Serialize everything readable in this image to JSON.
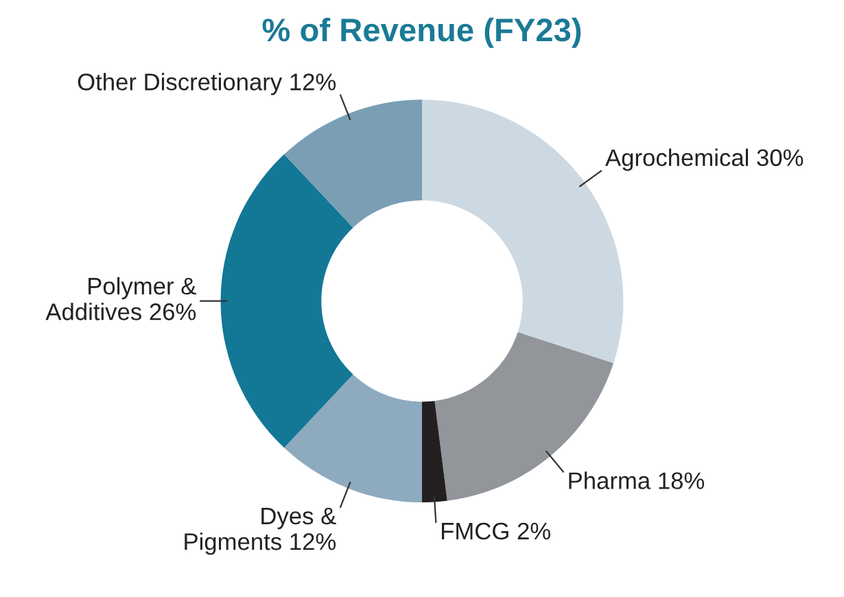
{
  "chart_data": {
    "type": "donut",
    "title": "% of Revenue (FY23)",
    "categories": [
      "Agrochemical",
      "Pharma",
      "FMCG",
      "Dyes &\nPigments",
      "Polymer &\nAdditives",
      "Other Discretionary"
    ],
    "values": [
      30,
      18,
      2,
      12,
      26,
      12
    ],
    "value_labels": [
      "30%",
      "18%",
      "2%",
      "12%",
      "26%",
      "12%"
    ],
    "colors": [
      "#cdd9e2",
      "#929599",
      "#231f20",
      "#8eaabf",
      "#137796",
      "#7a9fb5"
    ],
    "legend": false
  }
}
